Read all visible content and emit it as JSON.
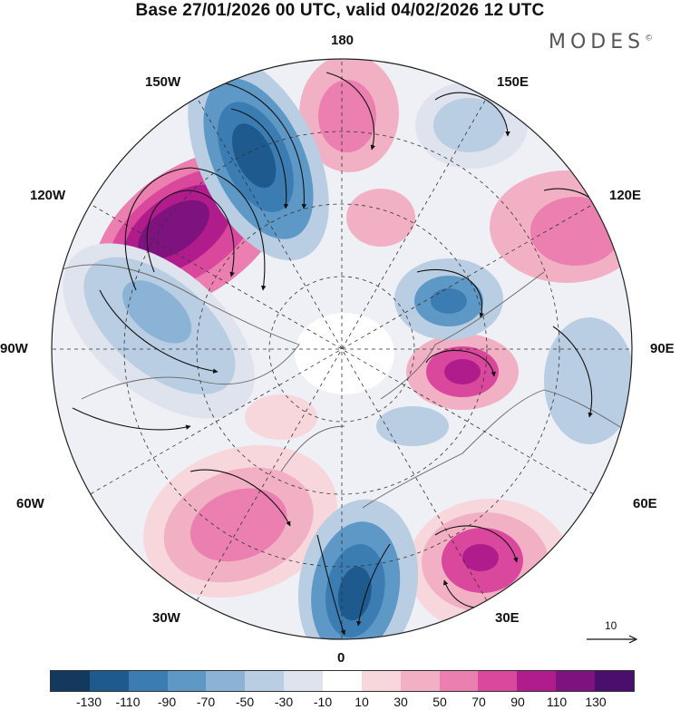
{
  "header": {
    "title": "Base 27/01/2026 00 UTC, valid 04/02/2026 12 UTC",
    "brand": "MODES",
    "brand_mark": "©"
  },
  "map": {
    "projection": "north polar stereographic",
    "longitude_labels": {
      "top": "180",
      "top_left": "150W",
      "top_right": "150E",
      "upper_left": "120W",
      "upper_right": "120E",
      "left": "90W",
      "right": "90E",
      "lower_left": "60W",
      "lower_right": "60E",
      "bottom_left": "30W",
      "bottom_right": "30E",
      "bottom": "0"
    },
    "vector_reference": {
      "value": "10"
    }
  },
  "colorbar": {
    "colors": [
      "#13395f",
      "#1e5a8e",
      "#3b7cb3",
      "#5e98c6",
      "#8bb3d6",
      "#b9cde3",
      "#dfe3ee",
      "#ffffff",
      "#f7d7dc",
      "#f2b0c4",
      "#ea7fb0",
      "#d9489c",
      "#b01c8c",
      "#7e1380",
      "#4a0e6c"
    ],
    "ticks": [
      "-130",
      "-110",
      "-90",
      "-70",
      "-50",
      "-30",
      "-10",
      "10",
      "30",
      "50",
      "70",
      "90",
      "110",
      "130"
    ]
  }
}
